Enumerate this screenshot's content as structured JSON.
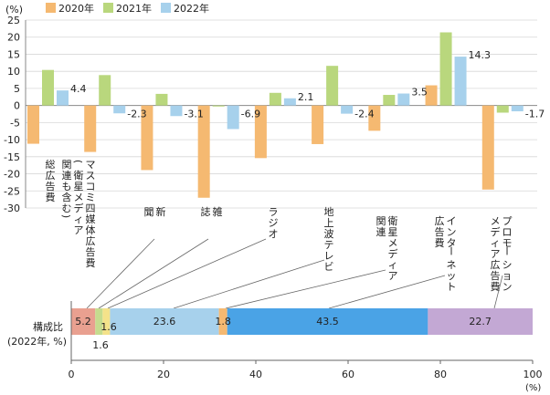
{
  "chart_data": [
    {
      "type": "bar",
      "ylabel": "(%)",
      "ylim": [
        -30,
        25
      ],
      "yticks": [
        25,
        20,
        15,
        10,
        5,
        0,
        -5,
        -10,
        -15,
        -20,
        -25,
        -30
      ],
      "legend_position": "top-left",
      "categories": [
        {
          "id": "total",
          "label": [
            "総広告費"
          ]
        },
        {
          "id": "mass4",
          "label": [
            "マスコミ四媒体広告費",
            "(衛星メディア",
            "関連も含む)"
          ]
        },
        {
          "id": "newspaper",
          "label": [
            "新",
            "聞"
          ]
        },
        {
          "id": "magazine",
          "label": [
            "雑",
            "誌"
          ]
        },
        {
          "id": "radio",
          "label": [
            "ラジオ"
          ]
        },
        {
          "id": "tv",
          "label": [
            "地上波テレビ"
          ]
        },
        {
          "id": "satellite",
          "label": [
            "衛星メディア",
            "関連"
          ]
        },
        {
          "id": "internet",
          "label": [
            "インターネット",
            "広告費"
          ]
        },
        {
          "id": "promo",
          "label": [
            "プロモーション",
            "メディア広告費"
          ]
        }
      ],
      "series": [
        {
          "name": "2020年",
          "color": "#f5b971",
          "values": [
            -11.2,
            -13.6,
            -18.9,
            -27.0,
            -15.4,
            -11.3,
            -7.4,
            5.9,
            -24.6
          ]
        },
        {
          "name": "2021年",
          "color": "#b9d77d",
          "values": [
            10.4,
            8.9,
            3.4,
            -0.3,
            3.7,
            11.6,
            3.1,
            21.4,
            -2.1
          ]
        },
        {
          "name": "2022年",
          "color": "#a7d1ec",
          "values": [
            4.4,
            -2.3,
            -3.1,
            -6.9,
            2.1,
            -2.4,
            3.5,
            14.3,
            -1.7
          ]
        }
      ],
      "data_labels": [
        "4.4",
        "-2.3",
        "-3.1",
        "-6.9",
        "2.1",
        "-2.4",
        "3.5",
        "14.3",
        "-1.7"
      ]
    },
    {
      "type": "stacked-bar",
      "ylabel": [
        "構成比",
        "(2022年, %)"
      ],
      "xlabel": "(%)",
      "xlim": [
        0,
        100
      ],
      "xticks": [
        0,
        20,
        40,
        60,
        80,
        100
      ],
      "segments": [
        {
          "category": "newspaper",
          "value": 5.2,
          "label": "5.2",
          "color": "#e9a090",
          "link": "newspaper"
        },
        {
          "category": "magazine",
          "value": 1.6,
          "label": "1.6",
          "color": "#c5dc8e",
          "link": "magazine"
        },
        {
          "category": "radio",
          "value": 1.6,
          "label": "1.6",
          "color": "#f4e28a",
          "link": "radio"
        },
        {
          "category": "tv",
          "value": 23.6,
          "label": "23.6",
          "color": "#a7d1ec",
          "link": "tv"
        },
        {
          "category": "satellite",
          "value": 1.8,
          "label": "1.8",
          "color": "#f5b971",
          "link": "satellite"
        },
        {
          "category": "internet",
          "value": 43.5,
          "label": "43.5",
          "color": "#4aa3e6",
          "link": "internet"
        },
        {
          "category": "promo",
          "value": 22.7,
          "label": "22.7",
          "color": "#c3a8d4",
          "link": "promo"
        }
      ]
    }
  ]
}
